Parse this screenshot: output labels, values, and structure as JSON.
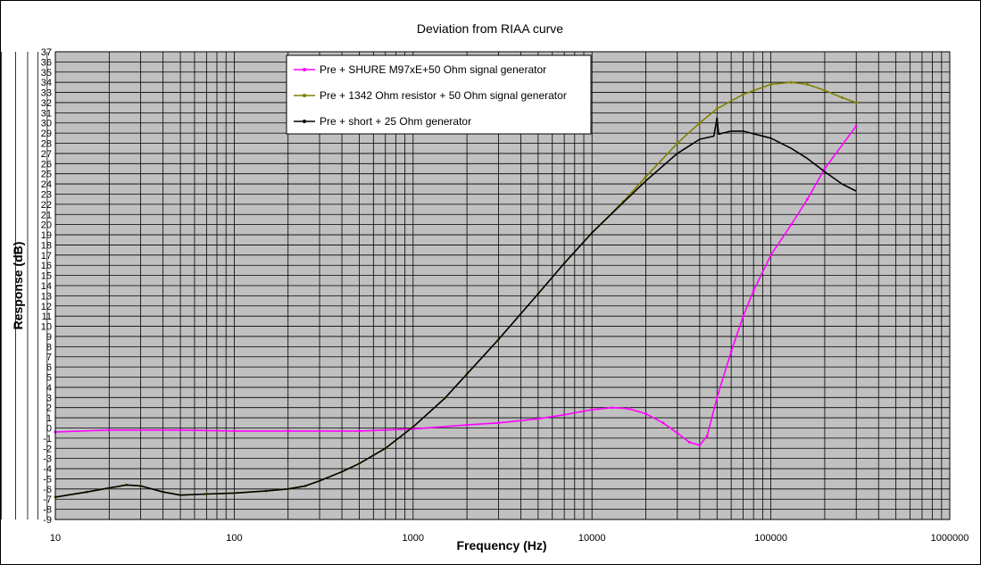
{
  "chart_data": {
    "type": "line",
    "title": "Deviation from RIAA curve",
    "xlabel": "Frequency (Hz)",
    "ylabel": "Response (dB)",
    "xscale": "log",
    "xlim": [
      10,
      1000000
    ],
    "ylim": [
      -9,
      37
    ],
    "x_ticks": [
      "10",
      "100",
      "1000",
      "10000",
      "100000",
      "1000000"
    ],
    "grid": true,
    "legend_position": "top-left",
    "series": [
      {
        "name": "Pre + SHURE M97xE+50 Ohm signal generator",
        "color": "#ff00ff",
        "points": [
          [
            10,
            -0.4
          ],
          [
            20,
            -0.2
          ],
          [
            50,
            -0.2
          ],
          [
            100,
            -0.3
          ],
          [
            200,
            -0.3
          ],
          [
            500,
            -0.3
          ],
          [
            1000,
            -0.1
          ],
          [
            2000,
            0.3
          ],
          [
            3000,
            0.5
          ],
          [
            5000,
            0.9
          ],
          [
            7000,
            1.3
          ],
          [
            10000,
            1.8
          ],
          [
            13000,
            2.0
          ],
          [
            16000,
            1.9
          ],
          [
            20000,
            1.4
          ],
          [
            25000,
            0.5
          ],
          [
            30000,
            -0.5
          ],
          [
            35000,
            -1.4
          ],
          [
            40000,
            -1.7
          ],
          [
            44000,
            -0.8
          ],
          [
            50000,
            3
          ],
          [
            60000,
            7.5
          ],
          [
            70000,
            11
          ],
          [
            80000,
            13.5
          ],
          [
            100000,
            17
          ],
          [
            130000,
            20
          ],
          [
            160000,
            22.5
          ],
          [
            200000,
            25.5
          ],
          [
            300000,
            29.7
          ]
        ]
      },
      {
        "name": "Pre + 1342 Ohm resistor + 50 Ohm signal generator",
        "color": "#808000",
        "points": [
          [
            10,
            -6.8
          ],
          [
            15,
            -6.3
          ],
          [
            20,
            -5.9
          ],
          [
            25,
            -5.6
          ],
          [
            30,
            -5.7
          ],
          [
            40,
            -6.3
          ],
          [
            50,
            -6.6
          ],
          [
            70,
            -6.5
          ],
          [
            100,
            -6.4
          ],
          [
            150,
            -6.2
          ],
          [
            200,
            -6.0
          ],
          [
            250,
            -5.7
          ],
          [
            300,
            -5.2
          ],
          [
            400,
            -4.3
          ],
          [
            500,
            -3.5
          ],
          [
            700,
            -2.0
          ],
          [
            1000,
            0.1
          ],
          [
            1500,
            2.9
          ],
          [
            2000,
            5.3
          ],
          [
            3000,
            8.7
          ],
          [
            5000,
            13.2
          ],
          [
            7000,
            16.2
          ],
          [
            10000,
            19.2
          ],
          [
            15000,
            22.3
          ],
          [
            20000,
            24.7
          ],
          [
            30000,
            28
          ],
          [
            40000,
            30
          ],
          [
            50000,
            31.4
          ],
          [
            70000,
            32.8
          ],
          [
            100000,
            33.8
          ],
          [
            130000,
            34
          ],
          [
            160000,
            33.8
          ],
          [
            200000,
            33.2
          ],
          [
            250000,
            32.5
          ],
          [
            300000,
            32
          ]
        ]
      },
      {
        "name": "Pre + short + 25 Ohm generator",
        "color": "#000000",
        "points": [
          [
            10,
            -6.8
          ],
          [
            15,
            -6.3
          ],
          [
            20,
            -5.9
          ],
          [
            25,
            -5.6
          ],
          [
            30,
            -5.7
          ],
          [
            40,
            -6.3
          ],
          [
            50,
            -6.6
          ],
          [
            70,
            -6.5
          ],
          [
            100,
            -6.4
          ],
          [
            150,
            -6.2
          ],
          [
            200,
            -6.0
          ],
          [
            250,
            -5.7
          ],
          [
            300,
            -5.2
          ],
          [
            400,
            -4.3
          ],
          [
            500,
            -3.5
          ],
          [
            700,
            -2.0
          ],
          [
            1000,
            0.1
          ],
          [
            1500,
            2.9
          ],
          [
            2000,
            5.3
          ],
          [
            3000,
            8.7
          ],
          [
            5000,
            13.2
          ],
          [
            7000,
            16.2
          ],
          [
            10000,
            19.2
          ],
          [
            15000,
            22.2
          ],
          [
            20000,
            24.3
          ],
          [
            30000,
            27
          ],
          [
            40000,
            28.4
          ],
          [
            48000,
            28.7
          ],
          [
            50000,
            30.5
          ],
          [
            51000,
            28.9
          ],
          [
            60000,
            29.2
          ],
          [
            70000,
            29.2
          ],
          [
            100000,
            28.5
          ],
          [
            130000,
            27.5
          ],
          [
            160000,
            26.5
          ],
          [
            200000,
            25.2
          ],
          [
            250000,
            24.0
          ],
          [
            300000,
            23.3
          ]
        ]
      }
    ]
  }
}
